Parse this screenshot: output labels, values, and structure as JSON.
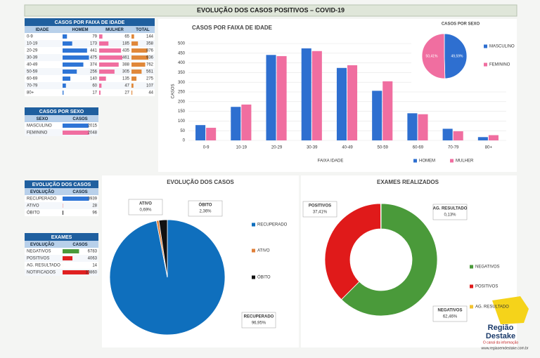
{
  "title": "EVOLUÇÃO DOS  CASOS POSITIVOS – COVID-19",
  "tables": [
    {
      "title": "CASOS POR FAIXA DE IDADE",
      "columns": [
        "IDADE",
        "HOMEM",
        "MULHER",
        "TOTAL"
      ],
      "bar_colors": [
        "#2e75d6",
        "#f06ea0",
        "#e0883a"
      ],
      "rows": [
        {
          "label": "0-9",
          "values": [
            79,
            65,
            144
          ]
        },
        {
          "label": "10-19",
          "values": [
            173,
            185,
            358
          ]
        },
        {
          "label": "20-29",
          "values": [
            441,
            435,
            876
          ]
        },
        {
          "label": "30-39",
          "values": [
            475,
            461,
            936
          ]
        },
        {
          "label": "40-49",
          "values": [
            374,
            388,
            762
          ]
        },
        {
          "label": "50-59",
          "values": [
            256,
            305,
            561
          ]
        },
        {
          "label": "60-69",
          "values": [
            140,
            135,
            275
          ]
        },
        {
          "label": "70-79",
          "values": [
            60,
            47,
            107
          ]
        },
        {
          "label": "80+",
          "values": [
            17,
            27,
            44
          ]
        }
      ]
    },
    {
      "title": "CASOS POR SEXO",
      "columns": [
        "SEXO",
        "CASOS"
      ],
      "rows": [
        {
          "label": "MASCULINO",
          "value": 2015,
          "color": "#2e75d6"
        },
        {
          "label": "FEMININO",
          "value": 2048,
          "color": "#f06ea0"
        }
      ]
    },
    {
      "title": "EVOLUÇÃO DOS CASOS",
      "columns": [
        "EVOLUÇÃO",
        "CASOS"
      ],
      "rows": [
        {
          "label": "RECUPERADO",
          "value": 3939,
          "color": "#2e75d6"
        },
        {
          "label": "ATIVO",
          "value": 28,
          "color": "#e02020"
        },
        {
          "label": "ÓBITO",
          "value": 96,
          "color": "#111111"
        }
      ]
    },
    {
      "title": "EXAMES",
      "columns": [
        "EVOLUÇÃO",
        "CASOS"
      ],
      "rows": [
        {
          "label": "NEGATIVOS",
          "value": 6783,
          "color": "#4a9a3a"
        },
        {
          "label": "POSITIVOS",
          "value": 4063,
          "color": "#e02020"
        },
        {
          "label": "AG. RESULTADO",
          "value": 14,
          "color": "#f2c230"
        },
        {
          "label": "NOTIFICADOS",
          "value": 10860,
          "color": "#e02020"
        }
      ]
    }
  ],
  "chart_data": [
    {
      "type": "bar",
      "title": "CASOS POR FAIXA DE IDADE",
      "y_label": "CASOS",
      "x_label": "FAIXA IDADE",
      "categories": [
        "0-9",
        "10-19",
        "20-29",
        "30-39",
        "40-49",
        "50-59",
        "60-69",
        "70-79",
        "80+"
      ],
      "series": [
        {
          "name": "HOMEM",
          "color": "#2e6fd0",
          "values": [
            79,
            173,
            441,
            475,
            374,
            256,
            140,
            60,
            17
          ]
        },
        {
          "name": "MULHER",
          "color": "#f06ea0",
          "values": [
            65,
            185,
            435,
            461,
            388,
            305,
            135,
            47,
            27
          ]
        }
      ],
      "ylim": [
        0,
        500
      ],
      "yticks": [
        0,
        50,
        100,
        150,
        200,
        250,
        300,
        350,
        400,
        450,
        500
      ],
      "grid": true,
      "legend": "bottom"
    },
    {
      "type": "pie",
      "title": "CASOS POR SEXO",
      "categories": [
        "MASCULINO",
        "FEMININO"
      ],
      "values": [
        49.59,
        50.41
      ],
      "value_labels": [
        "49,59%",
        "50,41%"
      ],
      "colors": [
        "#2e6fd0",
        "#f06ea0"
      ],
      "legend": "right"
    },
    {
      "type": "pie",
      "title": "EVOLUÇÃO DOS CASOS",
      "categories": [
        "RECUPERADO",
        "ATIVO",
        "ÓBITO"
      ],
      "values": [
        96.95,
        0.69,
        2.36
      ],
      "value_labels": [
        "96,95%",
        "0,69%",
        "2,36%"
      ],
      "colors": [
        "#0f6fbd",
        "#e0803a",
        "#111111"
      ],
      "legend": "right"
    },
    {
      "type": "donut",
      "title": "EXAMES REALIZADOS",
      "categories": [
        "NEGATIVOS",
        "POSITIVOS",
        "AG. RESULTADO"
      ],
      "values": [
        62.46,
        37.41,
        0.13
      ],
      "value_labels": [
        "62,46%",
        "37,41%",
        "0,13%"
      ],
      "colors": [
        "#4a9a3a",
        "#e01a1a",
        "#f2c230"
      ],
      "legend": "right"
    }
  ],
  "branding": {
    "name_line1": "Região",
    "name_line2": "Destake",
    "slogan": "O canal da informação",
    "url": "www.regiaoemdestake.com.br"
  }
}
